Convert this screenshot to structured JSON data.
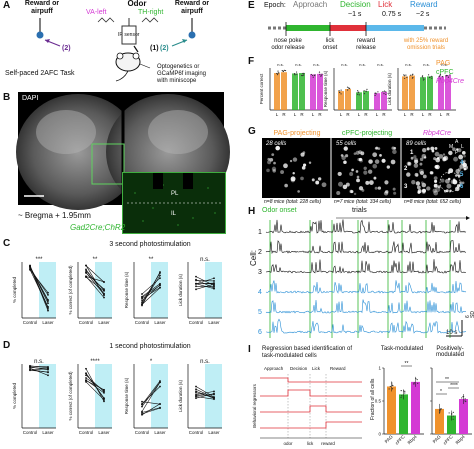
{
  "panel_a": {
    "label": "A",
    "top_labels": [
      "Reward or",
      "airpuff",
      "Odor",
      "Reward or",
      "airpuff"
    ],
    "odor_left": "VA-left",
    "odor_right": "TH-right",
    "ir_sensor": "IR sensor",
    "steps": [
      "(1)",
      "(2)",
      "(2)"
    ],
    "caption": "Self-paced 2AFC Task",
    "side_text": [
      "Optogenetics or",
      "GCaMP6f imaging",
      "with miniscope"
    ]
  },
  "panel_b": {
    "label": "B",
    "stain": "DAPI",
    "bregma": "~ Bregma + 1.95mm",
    "genotype": "Gad2Cre;ChR2",
    "regions": [
      "PL",
      "IL"
    ]
  },
  "panel_c": {
    "label": "C",
    "title": "3 second photostimulation",
    "sig": [
      "***",
      "**",
      "**",
      "n.s."
    ],
    "ylabels": [
      "% completed",
      "% correct (of completed)",
      "Response time (s)",
      "Lick duration (s)"
    ],
    "xticks": [
      "Control",
      "Laser"
    ]
  },
  "panel_d": {
    "label": "D",
    "title": "1 second photostimulation",
    "sig": [
      "n.s.",
      "****",
      "*",
      "n.s."
    ],
    "ylabels": [
      "% completed",
      "% correct (of completed)",
      "Response time (s)",
      "Lick duration (s)"
    ],
    "xticks": [
      "Control",
      "Laser"
    ]
  },
  "panel_e": {
    "label": "E",
    "epoch_prefix": "Epoch:",
    "epochs": [
      "Approach",
      "Decision",
      "Lick",
      "Reward"
    ],
    "durations": [
      "~1 s",
      "0.75 s",
      "~2 s"
    ],
    "events": [
      "nose poke",
      "odor release",
      "lick",
      "onset",
      "reward",
      "release"
    ],
    "note": [
      "with 25% reward",
      "omission trials"
    ]
  },
  "panel_f": {
    "label": "F",
    "sig": [
      "n.s.",
      "n.s.",
      "n.s.",
      "n.s.",
      "n.s.",
      "n.s.",
      "n.s.",
      "n.s.",
      "n.s."
    ],
    "ylabels": [
      "Percent correct",
      "Response time (s)",
      "Lick duration (s)"
    ],
    "xticks": [
      "L",
      "R"
    ],
    "legend": [
      "PAG",
      "cPFC",
      "Rbp4Cre"
    ],
    "colors": [
      "#f0922c",
      "#2fb52f",
      "#d43ad4"
    ]
  },
  "panel_g": {
    "label": "G",
    "headers": [
      "PAG-projecting",
      "cPFC-projecting",
      "Rbp4Cre"
    ],
    "cell_counts": [
      "28 cells",
      "55 cells",
      "89 cells"
    ],
    "footers": [
      "n=8 mice (total: 228 cells)",
      "n=7 mice (total: 334 cells)",
      "n=8 mice (total: 652 cells)"
    ],
    "compass": [
      "A",
      "M",
      "L",
      "P"
    ],
    "cell_ids": [
      "1",
      "2",
      "3",
      "4",
      "5",
      "6"
    ]
  },
  "panel_h": {
    "label": "H",
    "odor_onset": "Odor onset",
    "trials": "trials",
    "ylabel": "Cell:",
    "rows": [
      "1",
      "2",
      "3",
      "4",
      "5",
      "6"
    ],
    "scalebar_x": "10 s",
    "scalebar_y": "6 SD"
  },
  "panel_i": {
    "label": "I",
    "schematic_title": "Regression based identification of",
    "schematic_title2": "task-modulated cells",
    "epoch_labels": [
      "Approach",
      "Decision",
      "Lick",
      "Reward"
    ],
    "ylabel": "Behavioral regressors",
    "xticks": [
      "odor",
      "lick",
      "reward"
    ],
    "chart_titles": [
      "Task-modulated",
      "Positively-",
      "modulated"
    ],
    "chart_ylabel": "Fraction of all cells",
    "sig_task": "**",
    "sig_pos": [
      "*",
      "**",
      "****"
    ],
    "xcats": [
      "PAG",
      "cPFC",
      "Rbp4"
    ]
  },
  "chart_data": [
    {
      "type": "bar",
      "title": "Task-modulated",
      "ylabel": "Fraction of all cells",
      "categories": [
        "PAG",
        "cPFC",
        "Rbp4"
      ],
      "values": [
        0.72,
        0.6,
        0.79
      ],
      "ylim": [
        0,
        1
      ],
      "yticks": [
        "0",
        "0.5",
        "1"
      ],
      "colors": [
        "#f0922c",
        "#2fb52f",
        "#d43ad4"
      ]
    },
    {
      "type": "bar",
      "title": "Positively-modulated",
      "ylabel": "Fraction of all cells",
      "categories": [
        "PAG",
        "cPFC",
        "Rbp4"
      ],
      "values": [
        0.38,
        0.28,
        0.53
      ],
      "ylim": [
        0,
        1
      ],
      "yticks": [
        "0",
        "0.5",
        "1"
      ],
      "colors": [
        "#f0922c",
        "#2fb52f",
        "#d43ad4"
      ]
    }
  ]
}
